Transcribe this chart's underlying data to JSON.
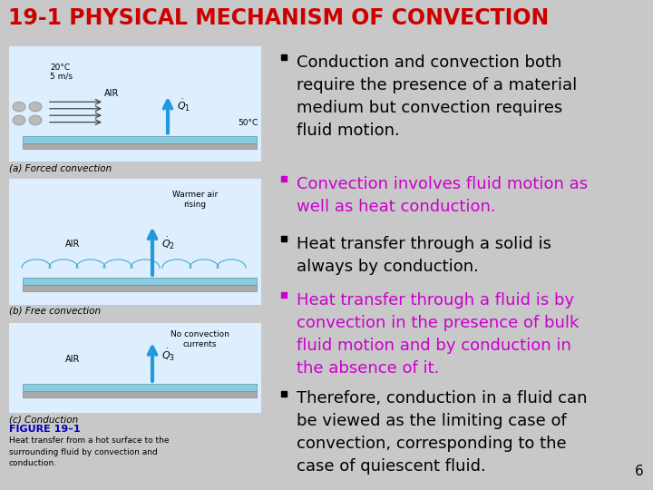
{
  "title": "19-1 PHYSICAL MECHANISM OF CONVECTION",
  "title_bg": "#FFFF00",
  "title_color": "#CC0000",
  "title_fontsize": 17,
  "slide_bg": "#C8C8C8",
  "bullet1_text": "Conduction and convection both\nrequire the presence of a material\nmedium but convection requires\nfluid motion.",
  "bullet1_color": "#000000",
  "bullet2_text": "Convection involves fluid motion as\nwell as heat conduction.",
  "bullet2_color": "#CC00CC",
  "bullet3_text": "Heat transfer through a solid is\nalways by conduction.",
  "bullet3_color": "#000000",
  "bullet4_text": "Heat transfer through a fluid is by\nconvection in the presence of bulk\nfluid motion and by conduction in\nthe absence of it.",
  "bullet4_color": "#CC00CC",
  "bullet5_text": "Therefore, conduction in a fluid can\nbe viewed as the limiting case of\nconvection, corresponding to the\ncase of quiescent fluid.",
  "bullet5_color": "#000000",
  "page_num": "6",
  "figure_caption_color": "#0000BB",
  "figure_caption": "FIGURE 19–1",
  "figure_body": "Heat transfer from a hot surface to the\nsurrounding fluid by convection and\nconduction.",
  "bullet_fontsize": 13.0
}
